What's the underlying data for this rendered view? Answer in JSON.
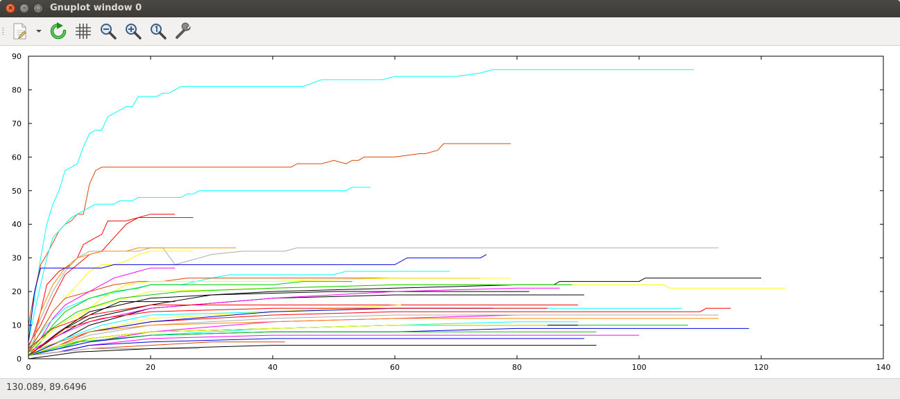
{
  "window": {
    "title": "Gnuplot window 0",
    "buttons": {
      "close": "×",
      "minimize": "–",
      "maximize": "□"
    }
  },
  "toolbar": {
    "items": [
      {
        "name": "export",
        "icon": "document-export-icon"
      },
      {
        "name": "export-menu",
        "icon": "chevron-down-icon"
      },
      {
        "name": "replot",
        "icon": "refresh-icon"
      },
      {
        "name": "grid",
        "icon": "grid-icon"
      },
      {
        "name": "zoom-out",
        "icon": "zoom-out-icon"
      },
      {
        "name": "zoom-in",
        "icon": "zoom-in-icon"
      },
      {
        "name": "zoom-reset",
        "icon": "zoom-reset-icon"
      },
      {
        "name": "settings",
        "icon": "wrench-icon"
      }
    ]
  },
  "status": {
    "coords": "130.089,  89.6496"
  },
  "chart_data": {
    "type": "line",
    "title": "",
    "xlabel": "",
    "ylabel": "",
    "xlim": [
      0,
      140
    ],
    "ylim": [
      0,
      90
    ],
    "xticks": [
      "0",
      "20",
      "40",
      "60",
      "80",
      "100",
      "120",
      "140"
    ],
    "yticks": [
      "0",
      "10",
      "20",
      "30",
      "40",
      "50",
      "60",
      "70",
      "80",
      "90"
    ],
    "grid": false,
    "legend": "none",
    "series": [
      {
        "color": "#00ffff",
        "x": [
          0,
          1,
          2,
          3,
          4,
          5,
          6,
          7,
          8,
          9,
          10,
          11,
          12,
          13,
          14,
          15,
          16,
          17,
          18,
          19,
          20,
          21,
          22,
          23,
          24,
          25,
          26,
          27,
          40,
          45,
          48,
          55,
          58,
          60,
          65,
          70,
          74,
          76,
          109
        ],
        "y": [
          8,
          18,
          30,
          40,
          46,
          50,
          56,
          57,
          58,
          63,
          67,
          68,
          68,
          72,
          73,
          74,
          75,
          75,
          78,
          78,
          78,
          78,
          79,
          79,
          80,
          81,
          81,
          81,
          81,
          81,
          83,
          83,
          83,
          84,
          84,
          84,
          85,
          86,
          86
        ]
      },
      {
        "color": "#dd4400",
        "x": [
          0,
          1,
          2,
          3,
          5,
          6,
          7,
          8,
          9,
          10,
          11,
          12,
          20,
          30,
          40,
          43,
          44,
          48,
          50,
          52,
          53,
          54,
          55,
          56,
          60,
          64,
          65,
          67,
          68,
          79
        ],
        "y": [
          10,
          20,
          28,
          31,
          38,
          40,
          41,
          43,
          43,
          52,
          56,
          57,
          57,
          57,
          57,
          57,
          58,
          58,
          59,
          58,
          59,
          59,
          60,
          60,
          60,
          61,
          61,
          62,
          64,
          64
        ]
      },
      {
        "color": "#00ffff",
        "x": [
          0,
          1,
          2,
          3,
          4,
          5,
          6,
          7,
          8,
          9,
          10,
          11,
          12,
          14,
          15,
          16,
          17,
          18,
          20,
          25,
          26,
          27,
          28,
          40,
          52,
          53,
          56
        ],
        "y": [
          5,
          14,
          22,
          30,
          36,
          38,
          40,
          42,
          43,
          44,
          45,
          46,
          46,
          46,
          47,
          47,
          47,
          48,
          48,
          48,
          49,
          49,
          50,
          50,
          50,
          51,
          51
        ]
      },
      {
        "color": "#ff0000",
        "x": [
          0,
          1,
          2,
          3,
          5,
          7,
          8,
          9,
          10,
          11,
          12,
          13,
          14,
          16,
          18,
          20,
          24
        ],
        "y": [
          3,
          8,
          14,
          22,
          26,
          28,
          30,
          34,
          35,
          36,
          37,
          41,
          41,
          41,
          42,
          43,
          43
        ]
      },
      {
        "color": "#ff0000",
        "x": [
          0,
          2,
          4,
          6,
          8,
          10,
          12,
          14,
          16,
          18,
          20,
          27
        ],
        "y": [
          4,
          10,
          18,
          25,
          28,
          31,
          32,
          36,
          40,
          42,
          42,
          42
        ]
      },
      {
        "color": "#aaaaaa",
        "x": [
          0,
          2,
          4,
          6,
          8,
          10,
          14,
          18,
          20,
          22,
          24,
          26,
          28,
          30,
          35,
          40,
          42,
          44,
          50,
          60,
          70,
          80,
          90,
          100,
          113
        ],
        "y": [
          3,
          12,
          20,
          26,
          30,
          32,
          32,
          32,
          33,
          33,
          28,
          29,
          30,
          31,
          32,
          32,
          32,
          33,
          33,
          33,
          33,
          33,
          33,
          33,
          33
        ]
      },
      {
        "color": "#ff8800",
        "x": [
          0,
          1,
          2,
          4,
          6,
          8,
          10,
          12,
          14,
          16,
          18,
          20,
          34
        ],
        "y": [
          2,
          6,
          14,
          22,
          27,
          30,
          31,
          32,
          32,
          32,
          33,
          33,
          33
        ]
      },
      {
        "color": "#ffff00",
        "x": [
          0,
          2,
          4,
          6,
          8,
          10,
          12,
          14,
          16,
          17,
          18,
          20,
          27
        ],
        "y": [
          2,
          8,
          14,
          18,
          22,
          26,
          28,
          28,
          29,
          30,
          31,
          32,
          32
        ]
      },
      {
        "color": "#0000dd",
        "x": [
          0,
          1,
          2,
          4,
          6,
          8,
          10,
          12,
          14,
          20,
          30,
          40,
          50,
          60,
          62,
          70,
          74,
          75
        ],
        "y": [
          5,
          20,
          27,
          27,
          27,
          27,
          27,
          27,
          28,
          28,
          28,
          28,
          28,
          28,
          30,
          30,
          30,
          31
        ]
      },
      {
        "color": "#ff00ff",
        "x": [
          0,
          2,
          4,
          6,
          8,
          10,
          12,
          14,
          16,
          18,
          20,
          24
        ],
        "y": [
          2,
          6,
          12,
          16,
          18,
          20,
          22,
          24,
          25,
          26,
          27,
          27
        ]
      },
      {
        "color": "#00ffff",
        "x": [
          0,
          3,
          6,
          10,
          15,
          20,
          25,
          30,
          33,
          40,
          50,
          52,
          69
        ],
        "y": [
          3,
          10,
          15,
          18,
          20,
          22,
          22,
          24,
          25,
          25,
          25,
          26,
          26
        ]
      },
      {
        "color": "#dd4400",
        "x": [
          0,
          2,
          4,
          6,
          10,
          14,
          18,
          22,
          26,
          30,
          40,
          50,
          60,
          74
        ],
        "y": [
          2,
          8,
          14,
          18,
          20,
          22,
          23,
          23,
          24,
          24,
          24,
          24,
          24,
          24
        ]
      },
      {
        "color": "#ffff00",
        "x": [
          0,
          4,
          8,
          12,
          16,
          20,
          40,
          60,
          74,
          79
        ],
        "y": [
          1,
          6,
          12,
          18,
          22,
          23,
          23,
          24,
          24,
          24
        ]
      },
      {
        "color": "#00cc00",
        "x": [
          0,
          2,
          4,
          6,
          8,
          10,
          14,
          18,
          20,
          30,
          40,
          45,
          50,
          53
        ],
        "y": [
          1,
          5,
          10,
          14,
          16,
          18,
          20,
          21,
          22,
          22,
          22,
          23,
          23,
          23
        ]
      },
      {
        "color": "#000000",
        "x": [
          0,
          5,
          10,
          20,
          40,
          60,
          80,
          86,
          87,
          95,
          100,
          101,
          120
        ],
        "y": [
          1,
          8,
          14,
          18,
          20,
          21,
          22,
          22,
          23,
          23,
          23,
          24,
          24
        ]
      },
      {
        "color": "#ffff00",
        "x": [
          0,
          5,
          10,
          20,
          40,
          60,
          80,
          90,
          100,
          104,
          105,
          124
        ],
        "y": [
          2,
          10,
          15,
          20,
          21,
          22,
          22,
          22,
          22,
          22,
          21,
          21
        ]
      },
      {
        "color": "#00cc00",
        "x": [
          0,
          3,
          8,
          15,
          25,
          40,
          60,
          80,
          89
        ],
        "y": [
          2,
          8,
          14,
          18,
          20,
          21,
          22,
          22,
          22
        ]
      },
      {
        "color": "#000000",
        "x": [
          0,
          4,
          10,
          20,
          30,
          50,
          70,
          82
        ],
        "y": [
          1,
          6,
          12,
          16,
          19,
          20,
          20,
          20
        ]
      },
      {
        "color": "#000000",
        "x": [
          0,
          5,
          10,
          20,
          40,
          60,
          80,
          91
        ],
        "y": [
          1,
          5,
          10,
          15,
          18,
          19,
          19,
          19
        ]
      },
      {
        "color": "#ff00ff",
        "x": [
          0,
          5,
          10,
          20,
          40,
          60,
          80,
          87
        ],
        "y": [
          2,
          7,
          11,
          15,
          18,
          20,
          21,
          21
        ]
      },
      {
        "color": "#000000",
        "x": [
          0,
          3,
          6,
          10,
          15,
          24
        ],
        "y": [
          1,
          5,
          9,
          13,
          17,
          17
        ]
      },
      {
        "color": "#ff0000",
        "x": [
          0,
          4,
          10,
          20,
          40,
          60,
          70,
          75,
          90
        ],
        "y": [
          3,
          9,
          13,
          16,
          16,
          16,
          16,
          16,
          16
        ]
      },
      {
        "color": "#ff0000",
        "x": [
          0,
          5,
          10,
          20,
          40,
          60,
          80,
          100,
          110,
          111,
          115
        ],
        "y": [
          1,
          4,
          8,
          11,
          13,
          14,
          14,
          14,
          14,
          15,
          15
        ]
      },
      {
        "color": "#00ffff",
        "x": [
          0,
          6,
          12,
          20,
          40,
          60,
          80,
          100,
          107
        ],
        "y": [
          1,
          6,
          10,
          13,
          14,
          15,
          15,
          15,
          15
        ]
      },
      {
        "color": "#ffff00",
        "x": [
          0,
          10,
          20,
          40,
          61
        ],
        "y": [
          2,
          8,
          12,
          14,
          16
        ]
      },
      {
        "color": "#0000dd",
        "x": [
          0,
          5,
          10,
          20,
          40,
          60,
          76
        ],
        "y": [
          1,
          5,
          8,
          11,
          14,
          15,
          15
        ]
      },
      {
        "color": "#ff00ff",
        "x": [
          0,
          10,
          20,
          40,
          60,
          80,
          100,
          113
        ],
        "y": [
          1,
          5,
          8,
          11,
          12,
          13,
          13,
          13
        ]
      },
      {
        "color": "#aaaaaa",
        "x": [
          0,
          5,
          10,
          20,
          40,
          60,
          80,
          100,
          113
        ],
        "y": [
          1,
          4,
          7,
          10,
          12,
          13,
          13,
          13,
          13
        ]
      },
      {
        "color": "#ff8800",
        "x": [
          0,
          5,
          10,
          20,
          40,
          60,
          80,
          100,
          113
        ],
        "y": [
          2,
          5,
          8,
          10,
          11,
          12,
          12,
          12,
          12
        ]
      },
      {
        "color": "#00cc00",
        "x": [
          0,
          5,
          10,
          20,
          40,
          60,
          80,
          100,
          108
        ],
        "y": [
          1,
          3,
          6,
          8,
          9,
          10,
          10,
          10,
          10
        ]
      },
      {
        "color": "#000000",
        "x": [
          0,
          5,
          10,
          20,
          40,
          60,
          80,
          90
        ],
        "y": [
          1,
          4,
          6,
          8,
          9,
          10,
          10,
          10
        ]
      },
      {
        "color": "#00ffff",
        "x": [
          0,
          5,
          10,
          20,
          40,
          60,
          80,
          90
        ],
        "y": [
          1,
          3,
          5,
          7,
          9,
          10,
          11,
          11
        ]
      },
      {
        "color": "#0000dd",
        "x": [
          0,
          5,
          10,
          20,
          40,
          60,
          80,
          100,
          118
        ],
        "y": [
          1,
          3,
          5,
          7,
          8,
          8,
          9,
          9,
          9
        ]
      },
      {
        "color": "#ffff00",
        "x": [
          0,
          5,
          10,
          20,
          40,
          60,
          85
        ],
        "y": [
          1,
          4,
          6,
          8,
          9,
          10,
          10
        ]
      },
      {
        "color": "#ff00ff",
        "x": [
          0,
          5,
          10,
          20,
          40,
          60,
          80,
          100
        ],
        "y": [
          1,
          2,
          4,
          6,
          7,
          7,
          7,
          7
        ]
      },
      {
        "color": "#0000dd",
        "x": [
          0,
          5,
          10,
          20,
          40,
          60,
          80,
          91
        ],
        "y": [
          1,
          2,
          4,
          5,
          6,
          6,
          6,
          6
        ]
      },
      {
        "color": "#dd4400",
        "x": [
          0,
          5,
          10,
          20,
          30,
          42
        ],
        "y": [
          1,
          2,
          3,
          4,
          5,
          5
        ]
      },
      {
        "color": "#aaaaaa",
        "x": [
          0,
          5,
          10,
          20,
          28
        ],
        "y": [
          1,
          2,
          3,
          3,
          3
        ]
      },
      {
        "color": "#000000",
        "x": [
          0,
          4,
          8,
          20,
          40,
          60,
          80,
          93
        ],
        "y": [
          0,
          1,
          2,
          3,
          4,
          4,
          4,
          4
        ]
      },
      {
        "color": "#00cc00",
        "x": [
          0,
          4,
          8,
          20,
          40,
          60,
          80,
          93
        ],
        "y": [
          1,
          3,
          5,
          7,
          8,
          8,
          8,
          8
        ]
      },
      {
        "color": "#ff0000",
        "x": [
          0,
          3,
          6,
          12,
          20,
          40,
          60,
          80,
          85
        ],
        "y": [
          1,
          5,
          9,
          12,
          14,
          15,
          15,
          15,
          15
        ]
      }
    ]
  }
}
